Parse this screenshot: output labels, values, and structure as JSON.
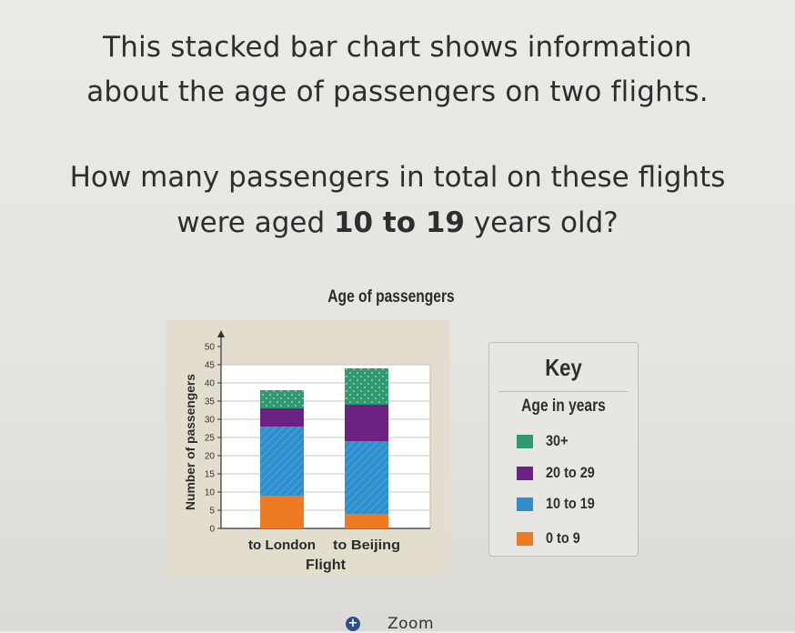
{
  "question": {
    "line1": "This stacked bar chart shows information",
    "line2": "about the age of passengers on two flights.",
    "line3": "How many passengers in total on these flights",
    "line4_pre": "were aged ",
    "line4_bold": "10 to 19",
    "line4_post": " years old?"
  },
  "zoom": {
    "label": "Zoom",
    "icon": "plus-circle-icon"
  },
  "key": {
    "title": "Key",
    "subtitle": "Age in years",
    "items": [
      {
        "label": "30+",
        "color": "#2f9a72"
      },
      {
        "label": "20 to 29",
        "color": "#6a2283"
      },
      {
        "label": "10 to 19",
        "color": "#2f8fcc"
      },
      {
        "label": "0 to 9",
        "color": "#ee7a23"
      }
    ]
  },
  "chart_data": {
    "type": "bar",
    "stacked": true,
    "title": "Age of passengers",
    "xlabel": "Flight",
    "ylabel": "Number of passengers",
    "categories": [
      "to London",
      "to Beijing"
    ],
    "ylim": [
      0,
      50
    ],
    "yticks": [
      0,
      5,
      10,
      15,
      20,
      25,
      30,
      35,
      40,
      45,
      50
    ],
    "grid": true,
    "series": [
      {
        "name": "0 to 9",
        "color": "#ee7a23",
        "values": [
          9,
          4
        ]
      },
      {
        "name": "10 to 19",
        "color": "#2f8fcc",
        "values": [
          19,
          20
        ]
      },
      {
        "name": "20 to 29",
        "color": "#6a2283",
        "values": [
          5,
          10
        ]
      },
      {
        "name": "30+",
        "color": "#2f9a72",
        "values": [
          5,
          10
        ]
      }
    ]
  }
}
